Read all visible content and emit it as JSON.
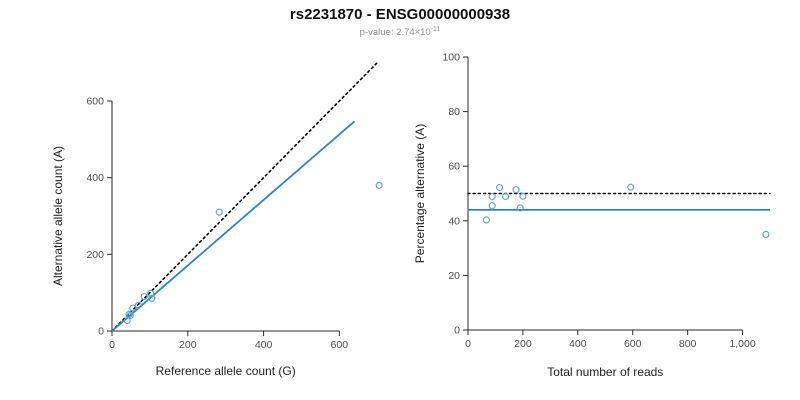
{
  "header": {
    "title": "rs2231870 - ENSG00000000938",
    "pvalue_label": "p-value: 2.74×10",
    "pvalue_exponent": "-11"
  },
  "colors": {
    "line_blue": "#2a85d0",
    "point_blue": "#56a3d6",
    "dotted_black": "#000000",
    "axis": "#2b2b2b"
  },
  "chart_data": [
    {
      "type": "scatter",
      "xlabel": "Reference allele count (G)",
      "ylabel": "Alternative allele count (A)",
      "xlim": [
        0,
        760
      ],
      "ylim": [
        0,
        720
      ],
      "grid": false,
      "legend": "none",
      "xticks": {
        "values": [
          0,
          200,
          400,
          600
        ],
        "labels": [
          "0",
          "200",
          "400",
          "600"
        ]
      },
      "yticks": {
        "values": [
          0,
          200,
          400,
          600
        ],
        "labels": [
          "0",
          "200",
          "400",
          "600"
        ]
      },
      "points": [
        [
          40,
          27
        ],
        [
          45,
          43
        ],
        [
          48,
          40
        ],
        [
          55,
          60
        ],
        [
          70,
          67
        ],
        [
          85,
          90
        ],
        [
          105,
          85
        ],
        [
          102,
          98
        ],
        [
          283,
          310
        ],
        [
          705,
          380
        ]
      ],
      "lines": [
        {
          "name": "identity-line",
          "style": "dotted",
          "color_key": "dotted_black",
          "width": 1.6,
          "from": [
            0,
            0
          ],
          "to": [
            700,
            700
          ]
        },
        {
          "name": "fit-line",
          "style": "solid",
          "color_key": "line_blue",
          "width": 1.8,
          "from": [
            0,
            0
          ],
          "to": [
            640,
            547
          ]
        }
      ]
    },
    {
      "type": "scatter",
      "xlabel": "Total number of reads",
      "ylabel": "Percentage alternative (A)",
      "xlim": [
        0,
        1100
      ],
      "ylim": [
        0,
        100
      ],
      "grid": false,
      "legend": "none",
      "xticks": {
        "values": [
          0,
          200,
          400,
          600,
          800,
          1000
        ],
        "labels": [
          "0",
          "200",
          "400",
          "600",
          "800",
          "1,000"
        ]
      },
      "yticks": {
        "values": [
          0,
          20,
          40,
          60,
          80,
          100
        ],
        "labels": [
          "0",
          "20",
          "40",
          "60",
          "80",
          "100"
        ]
      },
      "points": [
        [
          67,
          40.3
        ],
        [
          88,
          48.9
        ],
        [
          88,
          45.5
        ],
        [
          115,
          52.2
        ],
        [
          137,
          48.9
        ],
        [
          175,
          51.4
        ],
        [
          190,
          44.7
        ],
        [
          200,
          49.0
        ],
        [
          593,
          52.3
        ],
        [
          1085,
          35.0
        ]
      ],
      "lines": [
        {
          "name": "expected-50pct-line",
          "style": "dotted",
          "color_key": "dotted_black",
          "width": 1.6,
          "from": [
            0,
            50
          ],
          "to": [
            1100,
            50
          ]
        },
        {
          "name": "fit-percentage-line",
          "style": "solid",
          "color_key": "line_blue",
          "width": 1.8,
          "from": [
            0,
            44
          ],
          "to": [
            1100,
            44
          ]
        }
      ]
    }
  ]
}
